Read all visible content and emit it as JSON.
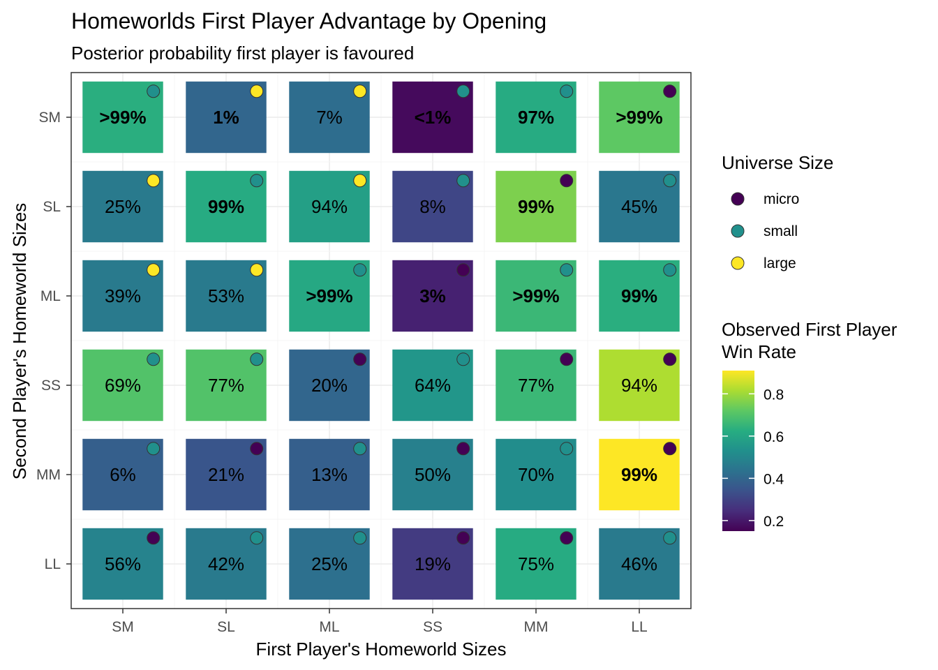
{
  "chart_data": {
    "type": "heatmap",
    "title": "Homeworlds First Player Advantage by Opening",
    "subtitle": "Posterior probability first player is favoured",
    "xlabel": "First Player's Homeworld Sizes",
    "ylabel": "Second Player's Homeworld Sizes",
    "x_categories": [
      "SM",
      "SL",
      "ML",
      "SS",
      "MM",
      "LL"
    ],
    "y_categories": [
      "SM",
      "SL",
      "ML",
      "SS",
      "MM",
      "LL"
    ],
    "grid": true,
    "legend_placement": "right",
    "universe_legend": {
      "title": "Universe Size",
      "items": [
        {
          "label": "micro",
          "color": "#440154"
        },
        {
          "label": "small",
          "color": "#21908C"
        },
        {
          "label": "large",
          "color": "#FDE725"
        }
      ]
    },
    "colorbar": {
      "title_lines": [
        "Observed First Player",
        "Win Rate"
      ],
      "min": 0.15,
      "max": 0.91,
      "ticks": [
        0.2,
        0.4,
        0.6,
        0.8
      ],
      "tick_labels": [
        "0.2",
        "0.4",
        "0.6",
        "0.8"
      ]
    },
    "cells": [
      {
        "x": "SM",
        "y": "SM",
        "label": ">99%",
        "bold": true,
        "win_rate": 0.63,
        "universe": "small"
      },
      {
        "x": "SL",
        "y": "SM",
        "label": "1%",
        "bold": true,
        "win_rate": 0.4,
        "universe": "large"
      },
      {
        "x": "ML",
        "y": "SM",
        "label": "7%",
        "bold": false,
        "win_rate": 0.42,
        "universe": "large"
      },
      {
        "x": "SS",
        "y": "SM",
        "label": "<1%",
        "bold": true,
        "win_rate": 0.17,
        "universe": "small"
      },
      {
        "x": "MM",
        "y": "SM",
        "label": "97%",
        "bold": true,
        "win_rate": 0.62,
        "universe": "small"
      },
      {
        "x": "LL",
        "y": "SM",
        "label": ">99%",
        "bold": true,
        "win_rate": 0.72,
        "universe": "micro"
      },
      {
        "x": "SM",
        "y": "SL",
        "label": "25%",
        "bold": false,
        "win_rate": 0.46,
        "universe": "large"
      },
      {
        "x": "SL",
        "y": "SL",
        "label": "99%",
        "bold": true,
        "win_rate": 0.62,
        "universe": "small"
      },
      {
        "x": "ML",
        "y": "SL",
        "label": "94%",
        "bold": false,
        "win_rate": 0.58,
        "universe": "large"
      },
      {
        "x": "SS",
        "y": "SL",
        "label": "8%",
        "bold": false,
        "win_rate": 0.31,
        "universe": "small"
      },
      {
        "x": "MM",
        "y": "SL",
        "label": "99%",
        "bold": true,
        "win_rate": 0.76,
        "universe": "micro"
      },
      {
        "x": "LL",
        "y": "SL",
        "label": "45%",
        "bold": false,
        "win_rate": 0.45,
        "universe": "small"
      },
      {
        "x": "SM",
        "y": "ML",
        "label": "39%",
        "bold": false,
        "win_rate": 0.46,
        "universe": "large"
      },
      {
        "x": "SL",
        "y": "ML",
        "label": "53%",
        "bold": false,
        "win_rate": 0.46,
        "universe": "large"
      },
      {
        "x": "ML",
        "y": "ML",
        "label": ">99%",
        "bold": true,
        "win_rate": 0.61,
        "universe": "small"
      },
      {
        "x": "SS",
        "y": "ML",
        "label": "3%",
        "bold": true,
        "win_rate": 0.22,
        "universe": "micro"
      },
      {
        "x": "MM",
        "y": "ML",
        "label": ">99%",
        "bold": true,
        "win_rate": 0.66,
        "universe": "small"
      },
      {
        "x": "LL",
        "y": "ML",
        "label": "99%",
        "bold": true,
        "win_rate": 0.63,
        "universe": "small"
      },
      {
        "x": "SM",
        "y": "SS",
        "label": "69%",
        "bold": false,
        "win_rate": 0.7,
        "universe": "small"
      },
      {
        "x": "SL",
        "y": "SS",
        "label": "77%",
        "bold": false,
        "win_rate": 0.7,
        "universe": "small"
      },
      {
        "x": "ML",
        "y": "SS",
        "label": "20%",
        "bold": false,
        "win_rate": 0.4,
        "universe": "micro"
      },
      {
        "x": "SS",
        "y": "SS",
        "label": "64%",
        "bold": false,
        "win_rate": 0.55,
        "universe": "small"
      },
      {
        "x": "MM",
        "y": "SS",
        "label": "77%",
        "bold": false,
        "win_rate": 0.66,
        "universe": "micro"
      },
      {
        "x": "LL",
        "y": "SS",
        "label": "94%",
        "bold": false,
        "win_rate": 0.82,
        "universe": "micro"
      },
      {
        "x": "SM",
        "y": "MM",
        "label": "6%",
        "bold": false,
        "win_rate": 0.38,
        "universe": "small"
      },
      {
        "x": "SL",
        "y": "MM",
        "label": "21%",
        "bold": false,
        "win_rate": 0.35,
        "universe": "micro"
      },
      {
        "x": "ML",
        "y": "MM",
        "label": "13%",
        "bold": false,
        "win_rate": 0.38,
        "universe": "small"
      },
      {
        "x": "SS",
        "y": "MM",
        "label": "50%",
        "bold": false,
        "win_rate": 0.48,
        "universe": "micro"
      },
      {
        "x": "MM",
        "y": "MM",
        "label": "70%",
        "bold": false,
        "win_rate": 0.52,
        "universe": "small"
      },
      {
        "x": "LL",
        "y": "MM",
        "label": "99%",
        "bold": true,
        "win_rate": 0.91,
        "universe": "micro"
      },
      {
        "x": "SM",
        "y": "LL",
        "label": "56%",
        "bold": false,
        "win_rate": 0.49,
        "universe": "micro"
      },
      {
        "x": "SL",
        "y": "LL",
        "label": "42%",
        "bold": false,
        "win_rate": 0.46,
        "universe": "small"
      },
      {
        "x": "ML",
        "y": "LL",
        "label": "25%",
        "bold": false,
        "win_rate": 0.43,
        "universe": "small"
      },
      {
        "x": "SS",
        "y": "LL",
        "label": "19%",
        "bold": false,
        "win_rate": 0.28,
        "universe": "micro"
      },
      {
        "x": "MM",
        "y": "LL",
        "label": "75%",
        "bold": false,
        "win_rate": 0.62,
        "universe": "micro"
      },
      {
        "x": "LL",
        "y": "LL",
        "label": "46%",
        "bold": false,
        "win_rate": 0.46,
        "universe": "small"
      }
    ]
  }
}
